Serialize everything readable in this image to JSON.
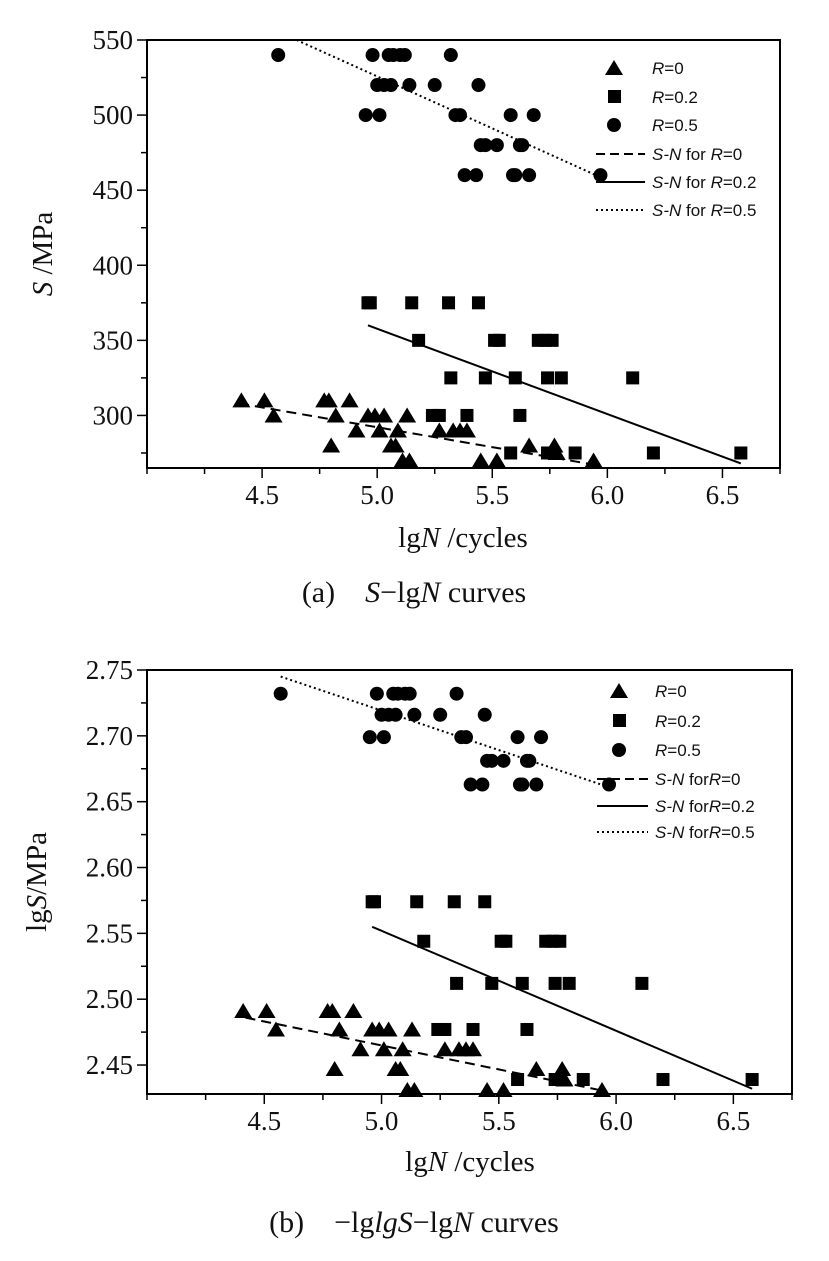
{
  "chart_data": [
    {
      "type": "scatter",
      "caption": {
        "pre": "(a) ",
        "y": "S",
        "mid": "−lg",
        "x": "N",
        "post": " curves"
      },
      "xlabel": {
        "pre": "lg",
        "var": "N",
        "post": " /cycles"
      },
      "ylabel": {
        "var": "S",
        "post": " /MPa"
      },
      "xlim": [
        4.0,
        6.75
      ],
      "ylim": [
        265,
        550
      ],
      "xticks": [
        4.5,
        5.0,
        5.5,
        6.0,
        6.5
      ],
      "xtick_labels": [
        "4.5",
        "5.0",
        "5.5",
        "6.0",
        "6.5"
      ],
      "yticks": [
        300,
        350,
        400,
        450,
        500,
        550
      ],
      "ytick_labels": [
        "300",
        "350",
        "400",
        "450",
        "500",
        "550"
      ],
      "grid": false,
      "legend_position": "top-right",
      "series": [
        {
          "name": {
            "var": "R",
            "post": "=0"
          },
          "marker": "triangle",
          "x": [
            4.41,
            4.51,
            4.55,
            4.77,
            4.79,
            4.8,
            4.82,
            4.88,
            4.91,
            4.96,
            4.99,
            5.01,
            5.03,
            5.06,
            5.08,
            5.09,
            5.11,
            5.13,
            5.14,
            5.27,
            5.33,
            5.36,
            5.39,
            5.45,
            5.52,
            5.66,
            5.77,
            5.78,
            5.94
          ],
          "y": [
            310,
            310,
            300,
            310,
            310,
            280,
            300,
            310,
            290,
            300,
            300,
            290,
            300,
            280,
            280,
            290,
            270,
            300,
            270,
            290,
            290,
            290,
            290,
            270,
            270,
            280,
            280,
            275,
            270
          ]
        },
        {
          "name": {
            "var": "R",
            "post": "=0.2"
          },
          "marker": "square",
          "x": [
            4.96,
            4.97,
            5.15,
            5.18,
            5.24,
            5.27,
            5.31,
            5.32,
            5.39,
            5.44,
            5.47,
            5.51,
            5.53,
            5.58,
            5.6,
            5.62,
            5.7,
            5.73,
            5.74,
            5.74,
            5.76,
            5.8,
            5.86,
            6.11,
            6.2,
            6.58
          ],
          "y": [
            375,
            375,
            375,
            350,
            300,
            300,
            375,
            325,
            300,
            375,
            325,
            350,
            350,
            275,
            325,
            300,
            350,
            350,
            275,
            325,
            350,
            325,
            275,
            325,
            275,
            275
          ]
        },
        {
          "name": {
            "var": "R",
            "post": "=0.5"
          },
          "marker": "circle",
          "x": [
            4.57,
            4.95,
            4.98,
            5.0,
            5.01,
            5.03,
            5.05,
            5.06,
            5.07,
            5.1,
            5.12,
            5.14,
            5.25,
            5.32,
            5.34,
            5.36,
            5.38,
            5.43,
            5.44,
            5.45,
            5.47,
            5.52,
            5.58,
            5.59,
            5.6,
            5.62,
            5.63,
            5.66,
            5.68,
            5.97
          ],
          "y": [
            540,
            500,
            540,
            520,
            500,
            520,
            540,
            520,
            540,
            540,
            540,
            520,
            520,
            540,
            500,
            500,
            460,
            460,
            520,
            480,
            480,
            480,
            500,
            460,
            460,
            480,
            480,
            460,
            500,
            460
          ]
        }
      ],
      "fit_lines": [
        {
          "name": {
            "pre": "S-N",
            "mid": " for ",
            "var": "R",
            "post": "=0"
          },
          "style": "dashed",
          "x": [
            4.4,
            5.95
          ],
          "y": [
            308,
            267
          ]
        },
        {
          "name": {
            "pre": "S-N",
            "mid": " for ",
            "var": "R",
            "post": "=0.2"
          },
          "style": "solid",
          "x": [
            4.96,
            6.58
          ],
          "y": [
            360,
            268
          ]
        },
        {
          "name": {
            "pre": "S-N",
            "mid": " for ",
            "var": "R",
            "post": "=0.5"
          },
          "style": "dotted",
          "x": [
            4.65,
            5.95
          ],
          "y": [
            550,
            460
          ]
        }
      ]
    },
    {
      "type": "scatter",
      "caption": {
        "pre": "(b) ",
        "y": "lgS",
        "mid": "−lg",
        "x": "N",
        "post": " curves"
      },
      "xlabel": {
        "pre": "lg",
        "var": "N",
        "post": " /cycles"
      },
      "ylabel": {
        "pre": "lg",
        "var": "S",
        "post": "/MPa"
      },
      "xlim": [
        4.0,
        6.75
      ],
      "ylim": [
        2.428,
        2.75
      ],
      "xticks": [
        4.5,
        5.0,
        5.5,
        6.0,
        6.5
      ],
      "xtick_labels": [
        "4.5",
        "5.0",
        "5.5",
        "6.0",
        "6.5"
      ],
      "yticks": [
        2.45,
        2.5,
        2.55,
        2.6,
        2.65,
        2.7,
        2.75
      ],
      "ytick_labels": [
        "2.45",
        "2.50",
        "2.55",
        "2.60",
        "2.65",
        "2.70",
        "2.75"
      ],
      "grid": false,
      "legend_position": "top-right",
      "series": [
        {
          "name": {
            "var": "R",
            "post": "=0"
          },
          "marker": "triangle",
          "x": [
            4.41,
            4.51,
            4.55,
            4.77,
            4.79,
            4.8,
            4.82,
            4.88,
            4.91,
            4.96,
            4.99,
            5.01,
            5.03,
            5.06,
            5.08,
            5.09,
            5.11,
            5.13,
            5.14,
            5.27,
            5.33,
            5.36,
            5.39,
            5.45,
            5.52,
            5.66,
            5.77,
            5.78,
            5.94
          ],
          "y": [
            2.491,
            2.491,
            2.477,
            2.491,
            2.491,
            2.447,
            2.477,
            2.491,
            2.462,
            2.477,
            2.477,
            2.462,
            2.477,
            2.447,
            2.447,
            2.462,
            2.431,
            2.477,
            2.431,
            2.462,
            2.462,
            2.462,
            2.462,
            2.431,
            2.431,
            2.447,
            2.447,
            2.439,
            2.431
          ]
        },
        {
          "name": {
            "var": "R",
            "post": "=0.2"
          },
          "marker": "square",
          "x": [
            4.96,
            4.97,
            5.15,
            5.18,
            5.24,
            5.27,
            5.31,
            5.32,
            5.39,
            5.44,
            5.47,
            5.51,
            5.53,
            5.58,
            5.6,
            5.62,
            5.7,
            5.73,
            5.74,
            5.74,
            5.76,
            5.8,
            5.86,
            6.11,
            6.2,
            6.58
          ],
          "y": [
            2.574,
            2.574,
            2.574,
            2.544,
            2.477,
            2.477,
            2.574,
            2.512,
            2.477,
            2.574,
            2.512,
            2.544,
            2.544,
            2.439,
            2.512,
            2.477,
            2.544,
            2.544,
            2.439,
            2.512,
            2.544,
            2.512,
            2.439,
            2.512,
            2.439,
            2.439
          ]
        },
        {
          "name": {
            "var": "R",
            "post": "=0.5"
          },
          "marker": "circle",
          "x": [
            4.57,
            4.95,
            4.98,
            5.0,
            5.01,
            5.03,
            5.05,
            5.06,
            5.07,
            5.1,
            5.12,
            5.14,
            5.25,
            5.32,
            5.34,
            5.36,
            5.38,
            5.43,
            5.44,
            5.45,
            5.47,
            5.52,
            5.58,
            5.59,
            5.6,
            5.62,
            5.63,
            5.66,
            5.68,
            5.97
          ],
          "y": [
            2.732,
            2.699,
            2.732,
            2.716,
            2.699,
            2.716,
            2.732,
            2.716,
            2.732,
            2.732,
            2.732,
            2.716,
            2.716,
            2.732,
            2.699,
            2.699,
            2.663,
            2.663,
            2.716,
            2.681,
            2.681,
            2.681,
            2.699,
            2.663,
            2.663,
            2.681,
            2.681,
            2.663,
            2.699,
            2.663
          ]
        }
      ],
      "fit_lines": [
        {
          "name": {
            "pre": "S-N",
            "mid": " for",
            "var": "R",
            "post": "=0"
          },
          "style": "dashed",
          "x": [
            4.42,
            5.93
          ],
          "y": [
            2.486,
            2.431
          ]
        },
        {
          "name": {
            "pre": "S-N",
            "mid": " for",
            "var": "R",
            "post": "=0.2"
          },
          "style": "solid",
          "x": [
            4.96,
            6.58
          ],
          "y": [
            2.555,
            2.432
          ]
        },
        {
          "name": {
            "pre": "S-N",
            "mid": " for",
            "var": "R",
            "post": "=0.5"
          },
          "style": "dotted",
          "x": [
            4.57,
            5.97
          ],
          "y": [
            2.745,
            2.661
          ]
        }
      ]
    }
  ]
}
